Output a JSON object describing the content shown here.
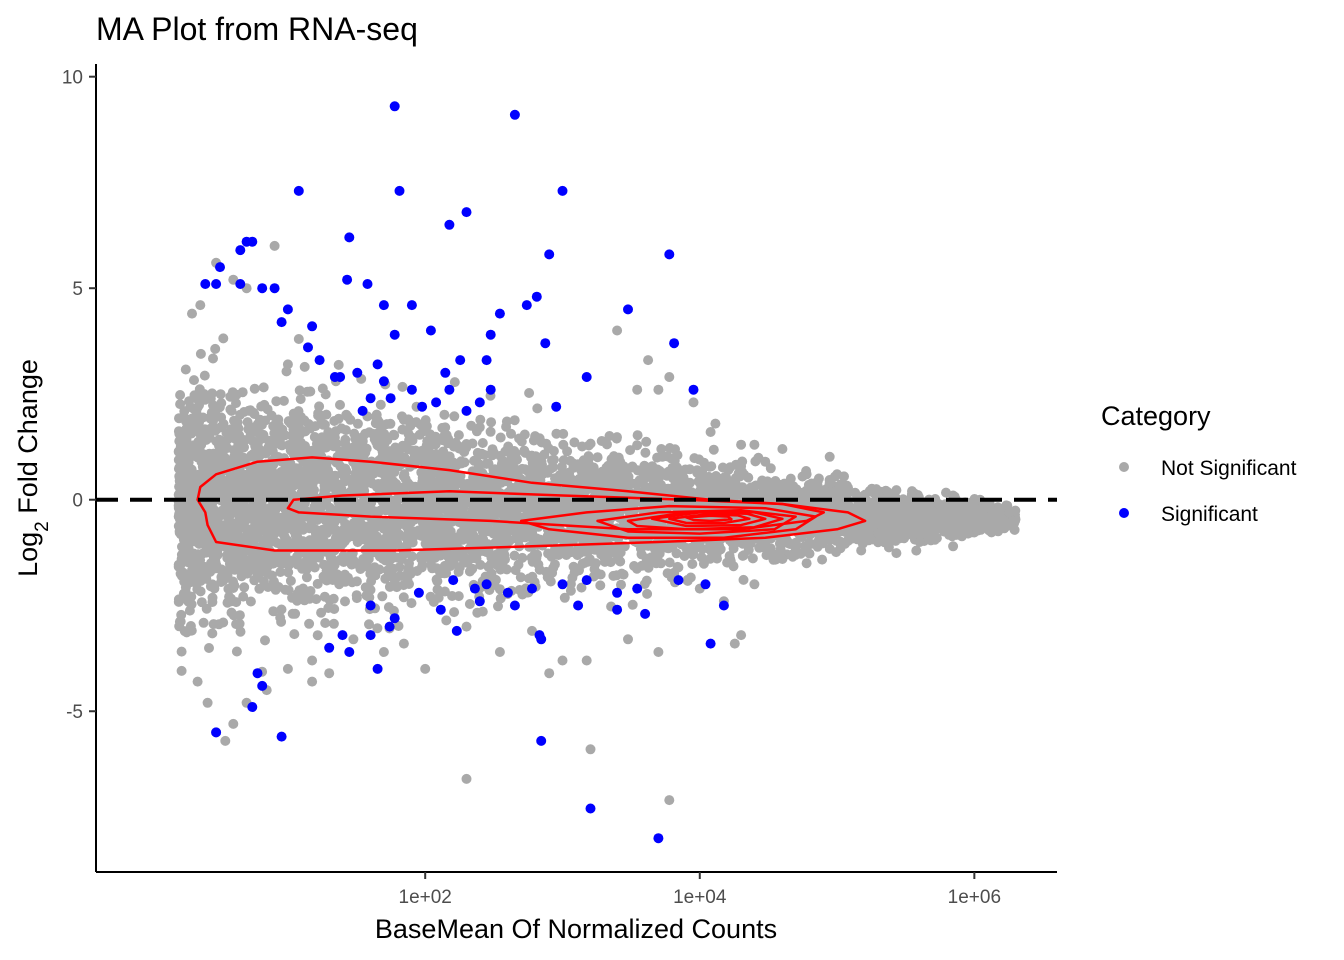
{
  "chart_data": {
    "type": "scatter",
    "title": "MA Plot from RNA-seq",
    "xlabel": "BaseMean Of Normalized Counts",
    "ylabel_main": "Log",
    "ylabel_sub": "2",
    "ylabel_rest": " Fold Change",
    "x_scale": "log10",
    "xlim": [
      0.4,
      4000000
    ],
    "ylim": [
      -8.8,
      10.3
    ],
    "x_ticks": [
      {
        "value": 100,
        "label": "1e+02"
      },
      {
        "value": 10000,
        "label": "1e+04"
      },
      {
        "value": 1000000,
        "label": "1e+06"
      }
    ],
    "y_ticks": [
      {
        "value": -5,
        "label": "-5"
      },
      {
        "value": 0,
        "label": "0"
      },
      {
        "value": 5,
        "label": "5"
      },
      {
        "value": 10,
        "label": "10"
      }
    ],
    "reference_line": {
      "y": 0,
      "style": "dashed",
      "color": "#000000"
    },
    "grid": false,
    "legend": {
      "title": "Category",
      "position": "right",
      "entries": [
        {
          "label": "Not Significant",
          "color": "#A9A9A9"
        },
        {
          "label": "Significant",
          "color": "#0000FF"
        }
      ]
    },
    "colors": {
      "not_significant": "#A9A9A9",
      "significant": "#0000FF",
      "contour": "#FF0000"
    },
    "series": [
      {
        "name": "Significant",
        "points": [
          [
            60,
            9.3
          ],
          [
            450,
            9.1
          ],
          [
            12,
            7.3
          ],
          [
            65,
            7.3
          ],
          [
            1000,
            7.3
          ],
          [
            200,
            6.8
          ],
          [
            150,
            6.5
          ],
          [
            6000,
            5.8
          ],
          [
            800,
            5.8
          ],
          [
            28,
            6.2
          ],
          [
            5,
            6.1
          ],
          [
            5.5,
            6.1
          ],
          [
            4.5,
            5.9
          ],
          [
            3.2,
            5.5
          ],
          [
            2.5,
            5.1
          ],
          [
            3,
            5.1
          ],
          [
            4.5,
            5.1
          ],
          [
            6.5,
            5.0
          ],
          [
            8,
            5.0
          ],
          [
            27,
            5.2
          ],
          [
            38,
            5.1
          ],
          [
            50,
            4.6
          ],
          [
            80,
            4.6
          ],
          [
            10,
            4.5
          ],
          [
            350,
            4.4
          ],
          [
            3000,
            4.5
          ],
          [
            650,
            4.8
          ],
          [
            550,
            4.6
          ],
          [
            9,
            4.2
          ],
          [
            15,
            4.1
          ],
          [
            110,
            4.0
          ],
          [
            300,
            3.9
          ],
          [
            60,
            3.9
          ],
          [
            750,
            3.7
          ],
          [
            6500,
            3.7
          ],
          [
            14,
            3.6
          ],
          [
            17,
            3.3
          ],
          [
            22,
            2.9
          ],
          [
            24,
            2.9
          ],
          [
            32,
            3.0
          ],
          [
            45,
            3.2
          ],
          [
            50,
            2.8
          ],
          [
            180,
            3.3
          ],
          [
            280,
            3.3
          ],
          [
            140,
            3.0
          ],
          [
            300,
            2.6
          ],
          [
            80,
            2.6
          ],
          [
            150,
            2.6
          ],
          [
            1500,
            2.9
          ],
          [
            9000,
            2.6
          ],
          [
            40,
            2.4
          ],
          [
            56,
            2.4
          ],
          [
            95,
            2.2
          ],
          [
            250,
            2.3
          ],
          [
            120,
            2.3
          ],
          [
            35,
            2.1
          ],
          [
            200,
            2.1
          ],
          [
            900,
            2.2
          ],
          [
            160,
            -1.9
          ],
          [
            230,
            -2.1
          ],
          [
            280,
            -2.0
          ],
          [
            400,
            -2.2
          ],
          [
            600,
            -2.1
          ],
          [
            1000,
            -2.0
          ],
          [
            1500,
            -1.9
          ],
          [
            2500,
            -2.2
          ],
          [
            3500,
            -2.1
          ],
          [
            7000,
            -1.9
          ],
          [
            11000,
            -2.0
          ],
          [
            90,
            -2.2
          ],
          [
            130,
            -2.6
          ],
          [
            40,
            -2.5
          ],
          [
            60,
            -2.8
          ],
          [
            250,
            -2.4
          ],
          [
            450,
            -2.5
          ],
          [
            1300,
            -2.5
          ],
          [
            2500,
            -2.6
          ],
          [
            4000,
            -2.7
          ],
          [
            15000,
            -2.5
          ],
          [
            55,
            -3.0
          ],
          [
            40,
            -3.2
          ],
          [
            25,
            -3.2
          ],
          [
            20,
            -3.5
          ],
          [
            28,
            -3.6
          ],
          [
            170,
            -3.1
          ],
          [
            680,
            -3.2
          ],
          [
            700,
            -3.3
          ],
          [
            12000,
            -3.4
          ],
          [
            45,
            -4.0
          ],
          [
            6,
            -4.1
          ],
          [
            6.5,
            -4.4
          ],
          [
            5.5,
            -4.9
          ],
          [
            3,
            -5.5
          ],
          [
            9,
            -5.6
          ],
          [
            700,
            -5.7
          ],
          [
            1600,
            -7.3
          ],
          [
            5000,
            -8.0
          ]
        ]
      },
      {
        "name": "Not Significant",
        "points": [
          [
            8,
            6.0
          ],
          [
            4,
            5.2
          ],
          [
            5,
            5.0
          ],
          [
            3,
            5.6
          ],
          [
            2.3,
            4.6
          ],
          [
            2,
            4.4
          ],
          [
            12,
            3.8
          ],
          [
            10,
            3.2
          ],
          [
            2500,
            4.0
          ],
          [
            4200,
            3.3
          ],
          [
            6000,
            2.9
          ],
          [
            3500,
            2.6
          ],
          [
            5000,
            2.6
          ],
          [
            13000,
            1.8
          ],
          [
            9000,
            2.3
          ],
          [
            12000,
            1.6
          ],
          [
            20000,
            1.3
          ],
          [
            25000,
            1.3
          ],
          [
            40000,
            1.2
          ],
          [
            30000,
            0.9
          ],
          [
            60000,
            0.6
          ],
          [
            100000,
            0.6
          ],
          [
            90000,
            0.4
          ],
          [
            200000,
            0.1
          ],
          [
            350000,
            0.1
          ],
          [
            550000,
            -0.1
          ],
          [
            700000,
            0.1
          ],
          [
            1100000,
            0.0
          ],
          [
            1300000,
            -0.2
          ],
          [
            1800000,
            -0.3
          ],
          [
            1900000,
            -0.5
          ],
          [
            900000,
            -0.8
          ],
          [
            700000,
            -1.1
          ],
          [
            400000,
            -1.0
          ],
          [
            200000,
            -0.8
          ],
          [
            150000,
            -1.2
          ],
          [
            60000,
            -1.5
          ],
          [
            40000,
            -1.4
          ],
          [
            25000,
            -2.0
          ],
          [
            10000,
            -2.1
          ],
          [
            15000,
            -2.4
          ],
          [
            20000,
            -3.2
          ],
          [
            18000,
            -3.4
          ],
          [
            3000,
            -3.3
          ],
          [
            5000,
            -3.6
          ],
          [
            1500,
            -3.8
          ],
          [
            1000,
            -3.8
          ],
          [
            1600,
            -5.9
          ],
          [
            200,
            -6.6
          ],
          [
            6000,
            -7.1
          ],
          [
            800,
            -4.1
          ],
          [
            350,
            -3.6
          ],
          [
            100,
            -4.0
          ],
          [
            50,
            -3.6
          ],
          [
            20,
            -4.1
          ],
          [
            15,
            -3.8
          ],
          [
            10,
            -4.0
          ],
          [
            7,
            -4.5
          ],
          [
            5,
            -4.8
          ],
          [
            3,
            -5.5
          ],
          [
            4,
            -5.3
          ],
          [
            3.5,
            -5.7
          ],
          [
            2.6,
            -4.8
          ],
          [
            2.2,
            -4.3
          ],
          [
            15,
            -4.3
          ],
          [
            30,
            -3.3
          ],
          [
            70,
            -3.4
          ],
          [
            200,
            -3.0
          ],
          [
            600,
            -3.1
          ]
        ]
      }
    ],
    "cloud_description": "dense gray band of thousands of non-significant genes centered near 0",
    "contours": [
      {
        "level": 1,
        "points": [
          [
            2.5,
            -0.3
          ],
          [
            2.2,
            0.0
          ],
          [
            2.3,
            0.3
          ],
          [
            3,
            0.6
          ],
          [
            6,
            0.9
          ],
          [
            15,
            1.0
          ],
          [
            40,
            0.9
          ],
          [
            150,
            0.7
          ],
          [
            600,
            0.4
          ],
          [
            3000,
            0.2
          ],
          [
            12000,
            0.0
          ],
          [
            40000,
            -0.1
          ],
          [
            120000,
            -0.3
          ],
          [
            160000,
            -0.5
          ],
          [
            100000,
            -0.7
          ],
          [
            30000,
            -0.9
          ],
          [
            5000,
            -1.0
          ],
          [
            600,
            -1.1
          ],
          [
            60,
            -1.2
          ],
          [
            8,
            -1.2
          ],
          [
            3,
            -1.0
          ],
          [
            2.6,
            -0.6
          ],
          [
            2.5,
            -0.3
          ]
        ]
      },
      {
        "level": 2,
        "points": [
          [
            10,
            -0.2
          ],
          [
            11,
            0.0
          ],
          [
            25,
            0.1
          ],
          [
            150,
            0.2
          ],
          [
            1000,
            0.1
          ],
          [
            8000,
            0.0
          ],
          [
            40000,
            -0.1
          ],
          [
            80000,
            -0.3
          ],
          [
            60000,
            -0.5
          ],
          [
            20000,
            -0.7
          ],
          [
            3000,
            -0.7
          ],
          [
            300,
            -0.5
          ],
          [
            40,
            -0.4
          ],
          [
            12,
            -0.3
          ],
          [
            10,
            -0.2
          ]
        ]
      },
      {
        "level": 3,
        "points": [
          [
            500,
            -0.5
          ],
          [
            1500,
            -0.3
          ],
          [
            6000,
            -0.15
          ],
          [
            30000,
            -0.2
          ],
          [
            70000,
            -0.4
          ],
          [
            50000,
            -0.7
          ],
          [
            15000,
            -0.9
          ],
          [
            3000,
            -0.9
          ],
          [
            800,
            -0.7
          ],
          [
            500,
            -0.5
          ]
        ]
      },
      {
        "level": 4,
        "points": [
          [
            1800,
            -0.5
          ],
          [
            5000,
            -0.3
          ],
          [
            20000,
            -0.25
          ],
          [
            50000,
            -0.4
          ],
          [
            35000,
            -0.7
          ],
          [
            10000,
            -0.8
          ],
          [
            3000,
            -0.75
          ],
          [
            1800,
            -0.5
          ]
        ]
      },
      {
        "level": 5,
        "points": [
          [
            3000,
            -0.5
          ],
          [
            8000,
            -0.3
          ],
          [
            25000,
            -0.3
          ],
          [
            40000,
            -0.45
          ],
          [
            25000,
            -0.65
          ],
          [
            8000,
            -0.7
          ],
          [
            3500,
            -0.62
          ],
          [
            3000,
            -0.5
          ]
        ]
      },
      {
        "level": 6,
        "points": [
          [
            4500,
            -0.45
          ],
          [
            10000,
            -0.3
          ],
          [
            22000,
            -0.33
          ],
          [
            30000,
            -0.45
          ],
          [
            20000,
            -0.6
          ],
          [
            8000,
            -0.62
          ],
          [
            4500,
            -0.45
          ]
        ]
      },
      {
        "level": 7,
        "points": [
          [
            6000,
            -0.45
          ],
          [
            11000,
            -0.35
          ],
          [
            19000,
            -0.37
          ],
          [
            23000,
            -0.45
          ],
          [
            15000,
            -0.55
          ],
          [
            8000,
            -0.55
          ],
          [
            6000,
            -0.45
          ]
        ]
      },
      {
        "level": 8,
        "points": [
          [
            8000,
            -0.42
          ],
          [
            12000,
            -0.38
          ],
          [
            16000,
            -0.4
          ],
          [
            17000,
            -0.46
          ],
          [
            12000,
            -0.5
          ],
          [
            9000,
            -0.48
          ],
          [
            8000,
            -0.42
          ]
        ]
      }
    ]
  }
}
